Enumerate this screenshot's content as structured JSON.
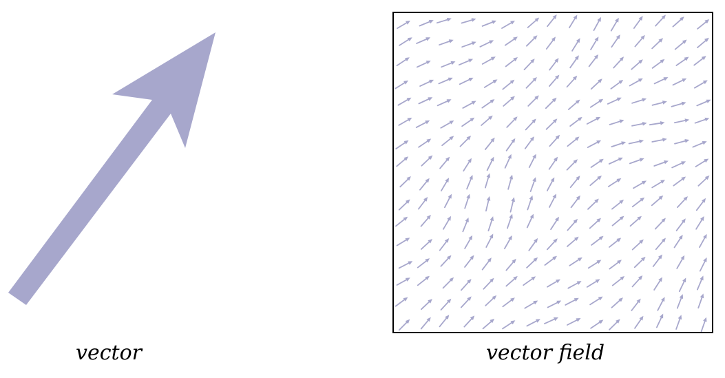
{
  "colors": {
    "arrow": "#a7a7cc",
    "frame": "#000000",
    "text": "#000000",
    "background": "#ffffff"
  },
  "vector": {
    "caption": "vector"
  },
  "vector_field": {
    "caption": "vector field",
    "grid": {
      "cols": 15,
      "rows": 16
    }
  }
}
